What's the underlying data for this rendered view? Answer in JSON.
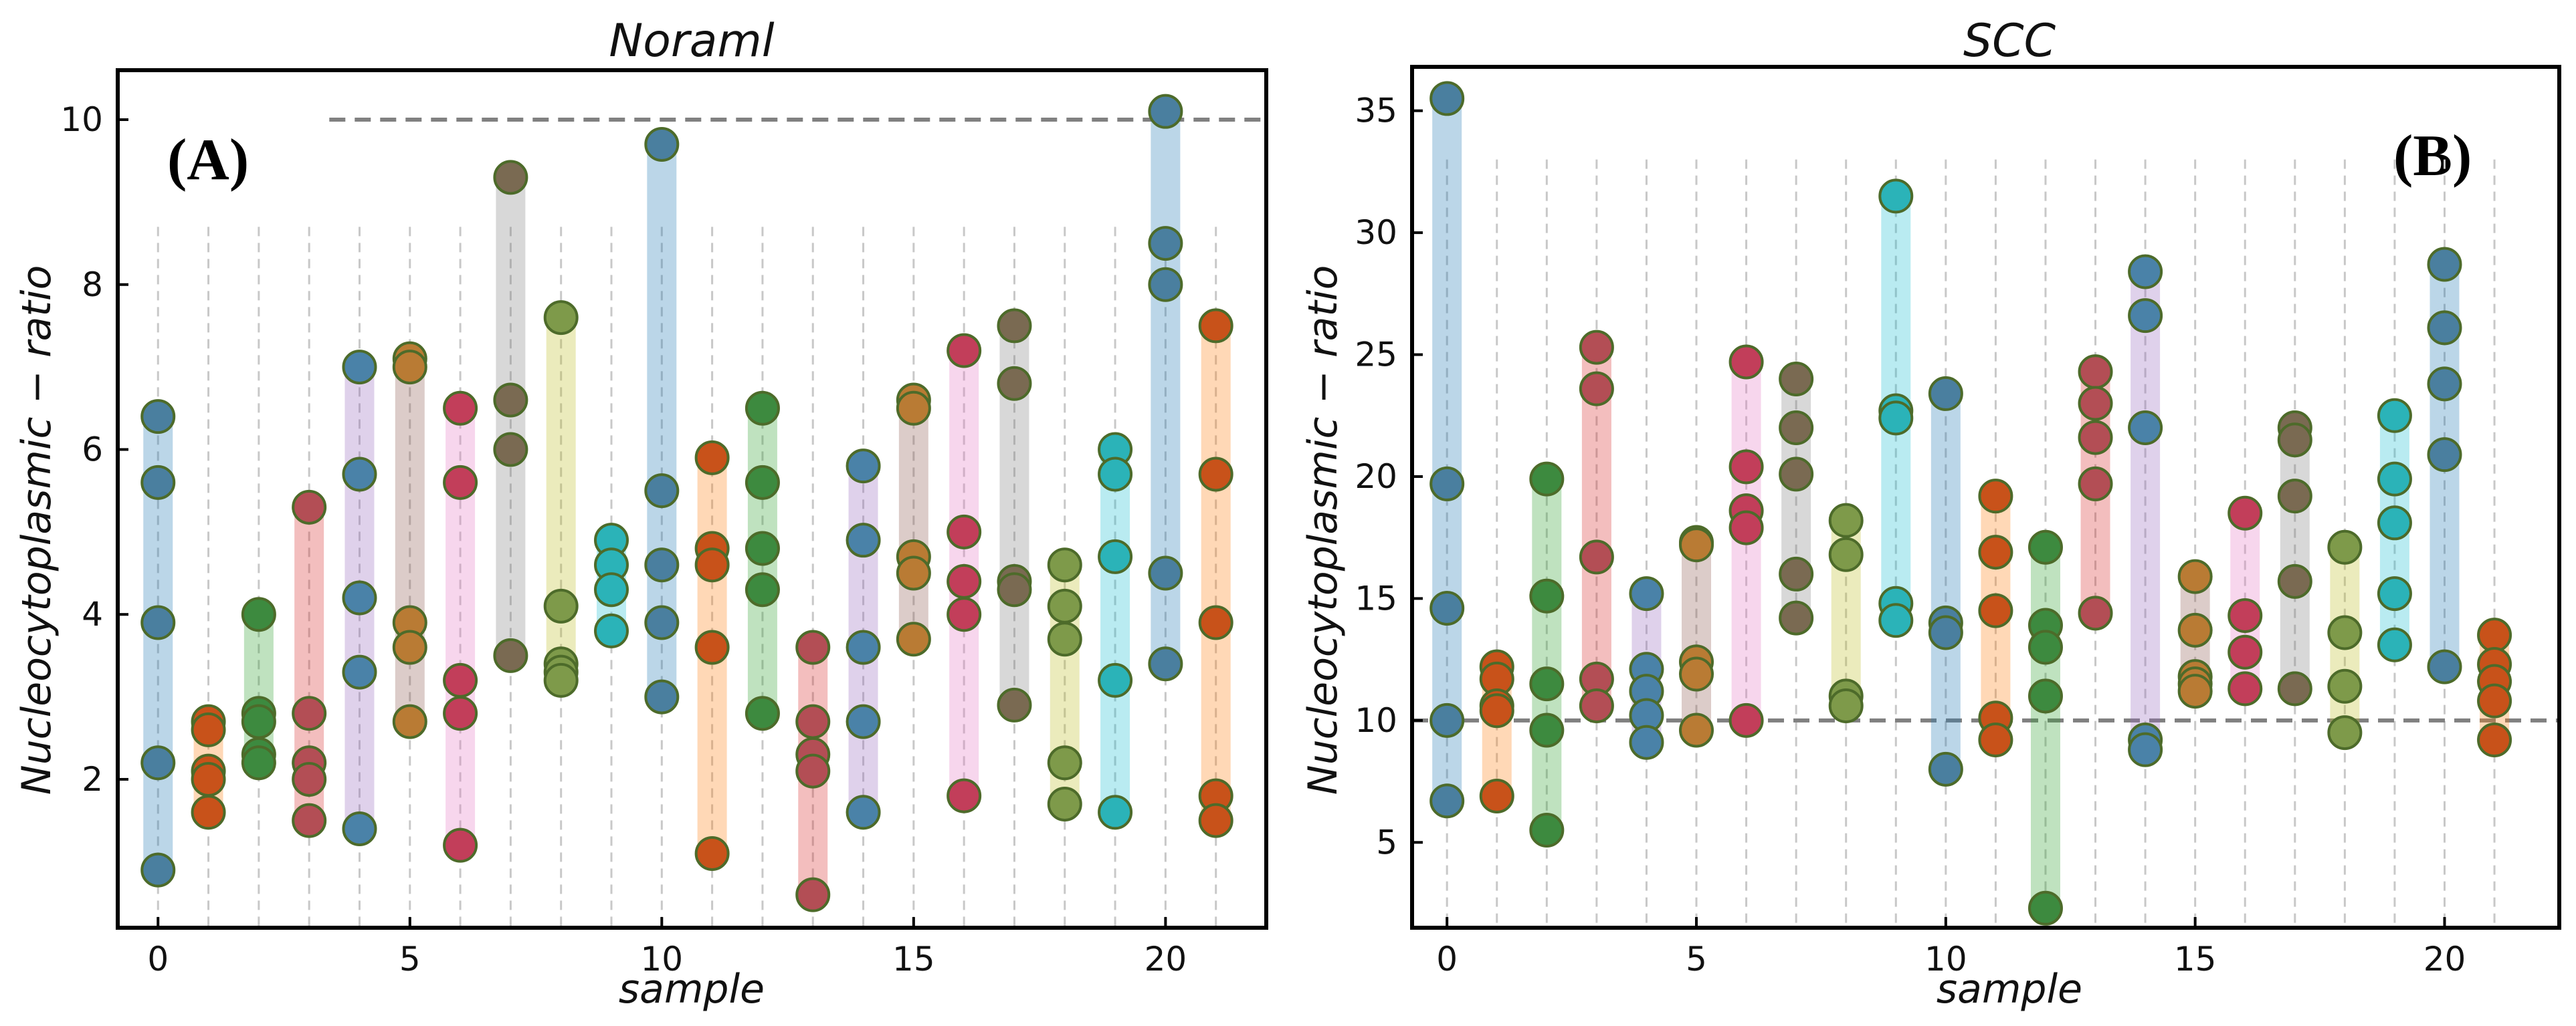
{
  "chart_data": [
    {
      "type": "scatter",
      "panel_label": "(A)",
      "title": "Noraml",
      "xlabel": "sample",
      "ylabel": "Nucleocytoplasmic − ratio",
      "xlim": [
        -0.8,
        22.0
      ],
      "ylim": [
        0.2,
        10.6
      ],
      "xticks": [
        0,
        5,
        10,
        15,
        20
      ],
      "yticks": [
        2,
        4,
        6,
        8,
        10
      ],
      "reference_line": {
        "y": 10,
        "x_start": 3.4,
        "x_end": 22.0,
        "style": "dashed"
      },
      "guide_top": 8.7,
      "series": [
        {
          "sample": 0,
          "values": [
            6.4,
            5.6,
            3.9,
            2.2,
            0.9
          ]
        },
        {
          "sample": 1,
          "values": [
            2.7,
            2.6,
            2.1,
            2.0,
            1.6
          ]
        },
        {
          "sample": 2,
          "values": [
            4.0,
            2.8,
            2.7,
            2.3,
            2.2
          ]
        },
        {
          "sample": 3,
          "values": [
            5.3,
            2.8,
            2.2,
            2.0,
            1.5
          ]
        },
        {
          "sample": 4,
          "values": [
            7.0,
            5.7,
            4.2,
            3.3,
            1.4
          ]
        },
        {
          "sample": 5,
          "values": [
            7.1,
            7.0,
            3.9,
            3.6,
            2.7
          ]
        },
        {
          "sample": 6,
          "values": [
            6.5,
            5.6,
            3.2,
            2.8,
            1.2
          ]
        },
        {
          "sample": 7,
          "values": [
            9.3,
            6.6,
            6.0,
            3.5
          ]
        },
        {
          "sample": 8,
          "values": [
            7.6,
            4.1,
            3.4,
            3.3,
            3.2
          ]
        },
        {
          "sample": 9,
          "values": [
            4.9,
            4.6,
            4.3,
            3.8
          ]
        },
        {
          "sample": 10,
          "values": [
            9.7,
            5.5,
            4.6,
            3.9,
            3.0
          ]
        },
        {
          "sample": 11,
          "values": [
            5.9,
            4.8,
            4.6,
            3.6,
            1.1
          ]
        },
        {
          "sample": 12,
          "values": [
            6.5,
            5.6,
            4.8,
            4.3,
            2.8
          ]
        },
        {
          "sample": 13,
          "values": [
            3.6,
            2.7,
            2.3,
            2.1,
            0.6
          ]
        },
        {
          "sample": 14,
          "values": [
            5.8,
            4.9,
            3.6,
            2.7,
            1.6
          ]
        },
        {
          "sample": 15,
          "values": [
            6.6,
            6.5,
            4.7,
            4.5,
            3.7
          ]
        },
        {
          "sample": 16,
          "values": [
            7.2,
            5.0,
            4.4,
            4.0,
            1.8
          ]
        },
        {
          "sample": 17,
          "values": [
            7.5,
            6.8,
            4.4,
            4.3,
            2.9
          ]
        },
        {
          "sample": 18,
          "values": [
            4.6,
            4.1,
            3.7,
            2.2,
            1.7
          ]
        },
        {
          "sample": 19,
          "values": [
            6.0,
            5.7,
            4.7,
            3.2,
            1.6
          ]
        },
        {
          "sample": 20,
          "values": [
            10.1,
            8.5,
            8.0,
            4.5,
            3.4
          ]
        },
        {
          "sample": 21,
          "values": [
            7.5,
            5.7,
            3.9,
            1.8,
            1.5
          ]
        }
      ]
    },
    {
      "type": "scatter",
      "panel_label": "(B)",
      "title": "SCC",
      "xlabel": "sample",
      "ylabel": "Nucleocytoplasmic − ratio",
      "xlim": [
        -0.7,
        22.3
      ],
      "ylim": [
        1.5,
        36.8
      ],
      "xticks": [
        0,
        5,
        10,
        15,
        20
      ],
      "yticks": [
        5,
        10,
        15,
        20,
        25,
        30,
        35
      ],
      "reference_line": {
        "y": 10,
        "x_start": -0.7,
        "x_end": 22.3,
        "style": "dashed"
      },
      "guide_top": 33.0,
      "series": [
        {
          "sample": 0,
          "values": [
            35.5,
            19.7,
            14.6,
            10.0,
            6.7
          ]
        },
        {
          "sample": 1,
          "values": [
            12.2,
            11.7,
            10.6,
            10.4,
            6.9
          ]
        },
        {
          "sample": 2,
          "values": [
            19.9,
            15.1,
            11.5,
            9.6,
            5.5
          ]
        },
        {
          "sample": 3,
          "values": [
            25.3,
            23.6,
            16.7,
            11.7,
            10.6
          ]
        },
        {
          "sample": 4,
          "values": [
            15.2,
            12.1,
            11.2,
            10.2,
            9.1
          ]
        },
        {
          "sample": 5,
          "values": [
            17.3,
            17.2,
            12.4,
            11.9,
            9.6
          ]
        },
        {
          "sample": 6,
          "values": [
            24.7,
            20.4,
            18.6,
            17.9,
            10.0
          ]
        },
        {
          "sample": 7,
          "values": [
            24.0,
            22.0,
            20.1,
            16.0,
            14.2
          ]
        },
        {
          "sample": 8,
          "values": [
            18.2,
            16.8,
            11.0,
            10.6
          ]
        },
        {
          "sample": 9,
          "values": [
            31.5,
            22.7,
            22.4,
            14.8,
            14.1
          ]
        },
        {
          "sample": 10,
          "values": [
            23.4,
            14.0,
            13.6,
            8.0
          ]
        },
        {
          "sample": 11,
          "values": [
            19.2,
            16.9,
            14.5,
            10.1,
            9.2
          ]
        },
        {
          "sample": 12,
          "values": [
            17.1,
            13.9,
            13.0,
            11.0,
            2.3
          ]
        },
        {
          "sample": 13,
          "values": [
            24.3,
            23.0,
            21.6,
            19.7,
            14.4
          ]
        },
        {
          "sample": 14,
          "values": [
            28.4,
            26.6,
            22.0,
            9.2,
            8.8
          ]
        },
        {
          "sample": 15,
          "values": [
            15.9,
            13.7,
            11.8,
            11.5,
            11.2
          ]
        },
        {
          "sample": 16,
          "values": [
            18.5,
            14.3,
            12.8,
            11.3
          ]
        },
        {
          "sample": 17,
          "values": [
            22.0,
            21.5,
            19.2,
            15.7,
            11.3
          ]
        },
        {
          "sample": 18,
          "values": [
            17.1,
            13.6,
            11.4,
            9.5
          ]
        },
        {
          "sample": 19,
          "values": [
            22.5,
            19.9,
            18.1,
            15.2,
            13.1
          ]
        },
        {
          "sample": 20,
          "values": [
            28.7,
            26.1,
            23.8,
            20.9,
            12.2
          ]
        },
        {
          "sample": 21,
          "values": [
            13.5,
            12.3,
            11.6,
            10.8,
            9.2
          ]
        }
      ]
    }
  ],
  "colors": {
    "band_cycle": [
      "#1f77b4",
      "#ff7f0e",
      "#2ca02c",
      "#d62728",
      "#9467bd",
      "#8c564b",
      "#e377c2",
      "#7f7f7f",
      "#bcbd22",
      "#17becf"
    ],
    "point_cycle": [
      "#4a7f9f",
      "#c8521a",
      "#3d8a3f",
      "#b34e55",
      "#4a82a8",
      "#b97b34",
      "#c23e5a",
      "#7a6a52",
      "#7e9a4a",
      "#2bb3b8"
    ],
    "point_edge": "#4d6b2a",
    "reference_line": "#808080",
    "guide_line": "#c8c8c8",
    "axes": "#000000"
  }
}
